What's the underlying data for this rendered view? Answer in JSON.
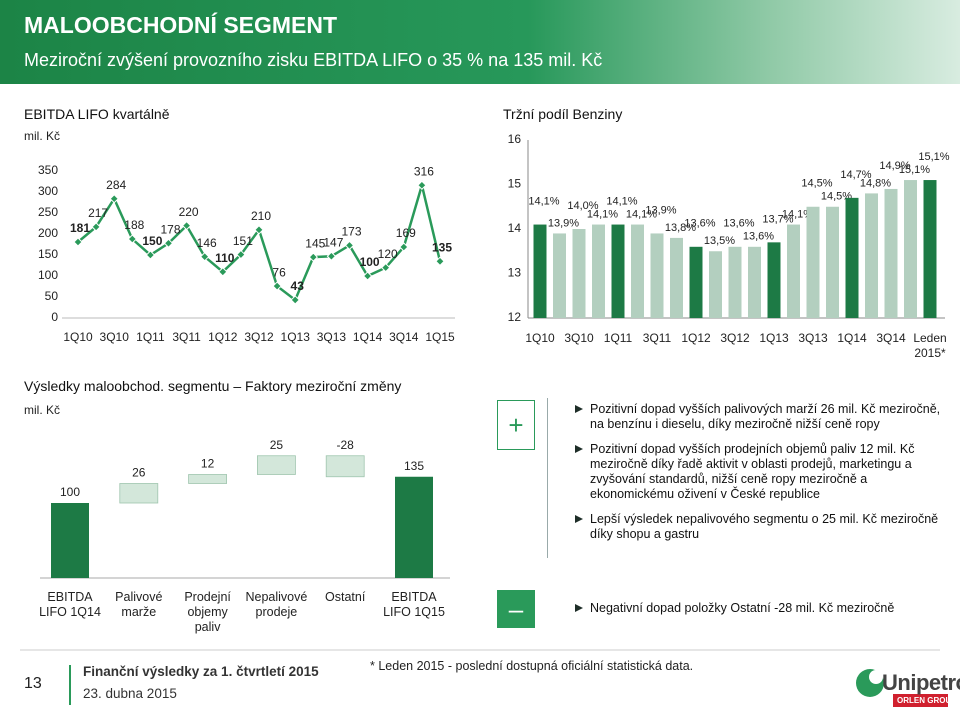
{
  "header": {
    "title": "MALOOBCHODNÍ SEGMENT",
    "subtitle": "Meziroční zvýšení provozního zisku EBITDA LIFO o 35 % na 135 mil. Kč"
  },
  "chart_data": [
    {
      "type": "line",
      "title": "EBITDA LIFO kvartálně",
      "y_label": "mil. Kč",
      "categories": [
        "1Q10",
        null,
        "3Q10",
        null,
        "1Q11",
        null,
        "3Q11",
        null,
        "1Q12",
        null,
        "3Q12",
        null,
        "1Q13",
        null,
        "3Q13",
        null,
        "1Q14",
        null,
        "3Q14",
        null,
        "1Q15"
      ],
      "values": [
        181,
        217,
        284,
        188,
        150,
        178,
        220,
        146,
        110,
        151,
        210,
        76,
        43,
        145,
        147,
        173,
        100,
        120,
        169,
        316,
        135
      ],
      "color": "#2a9a5a",
      "ylim": [
        0,
        350
      ],
      "yticks": [
        0,
        50,
        100,
        150,
        200,
        250,
        300,
        350
      ]
    },
    {
      "type": "bar",
      "title": "Tržní podíl Benziny",
      "categories": [
        "1Q10",
        null,
        "3Q10",
        null,
        "1Q11",
        null,
        "3Q11",
        null,
        "1Q12",
        null,
        "3Q12",
        null,
        "1Q13",
        null,
        "3Q13",
        null,
        "1Q14",
        null,
        "3Q14",
        null,
        "Leden 2015*"
      ],
      "values": [
        14.1,
        13.9,
        14.0,
        14.1,
        14.1,
        14.1,
        13.9,
        13.8,
        13.6,
        13.5,
        13.6,
        13.6,
        13.7,
        14.1,
        14.5,
        14.5,
        14.7,
        14.8,
        14.9,
        15.1,
        15.1
      ],
      "value_labels": [
        "14,1%",
        "13,9%",
        "14,0%",
        "14,1%",
        "14,1%",
        "14,1%",
        "13,9%",
        "13,8%",
        "13,6%",
        "13,5%",
        "13,6%",
        "13,6%",
        "13,7%",
        "14,1%",
        "14,5%",
        "14,5%",
        "14,7%",
        "14,8%",
        "14,9%",
        "15,1%",
        "15,1%"
      ],
      "colors": [
        "#1d7a45",
        "#b3cfbf",
        "#b3cfbf",
        "#b3cfbf",
        "#1d7a45",
        "#b3cfbf",
        "#b3cfbf",
        "#b3cfbf",
        "#1d7a45",
        "#b3cfbf",
        "#b3cfbf",
        "#b3cfbf",
        "#1d7a45",
        "#b3cfbf",
        "#b3cfbf",
        "#b3cfbf",
        "#1d7a45",
        "#b3cfbf",
        "#b3cfbf",
        "#b3cfbf",
        "#1d7a45"
      ],
      "ylim": [
        12,
        16
      ],
      "yticks": [
        12,
        13,
        14,
        15,
        16
      ]
    },
    {
      "type": "waterfall",
      "title": "Výsledky maloobchod. segmentu – Faktory meziroční změny",
      "y_label": "mil. Kč",
      "categories": [
        "EBITDA LIFO 1Q14",
        "Palivové marže",
        "Prodejní objemy paliv",
        "Nepalivové prodeje",
        "Ostatní",
        "EBITDA LIFO 1Q15"
      ],
      "values": [
        100,
        26,
        12,
        25,
        -28,
        135
      ],
      "total_color": "#1d7a45",
      "step_color": "#d3e7da"
    }
  ],
  "positive": {
    "sign": "+",
    "bullets": [
      "Pozitivní dopad vyšších palivových marží 26 mil. Kč meziročně, na benzínu i dieselu, díky meziročně nižší ceně ropy",
      "Pozitivní dopad vyšších prodejních objemů paliv 12 mil. Kč meziročně díky řadě aktivit v oblasti prodejů, marketingu a zvyšování standardů, nižší ceně ropy meziročně a ekonomickému oživení v České republice",
      "Lepší výsledek nepalivového segmentu o 25 mil. Kč meziročně díky shopu a gastru"
    ]
  },
  "negative": {
    "sign": "–",
    "bullets": [
      "Negativní dopad položky Ostatní -28 mil. Kč meziročně"
    ]
  },
  "footnote": "* Leden 2015 - poslední dostupná oficiální statistická data.",
  "footer": {
    "page": "13",
    "title": "Finanční výsledky za 1. čtvrtletí 2015",
    "date": "23. dubna 2015"
  },
  "logo": {
    "name": "Unipetrol",
    "group": "ORLEN GROUP"
  }
}
